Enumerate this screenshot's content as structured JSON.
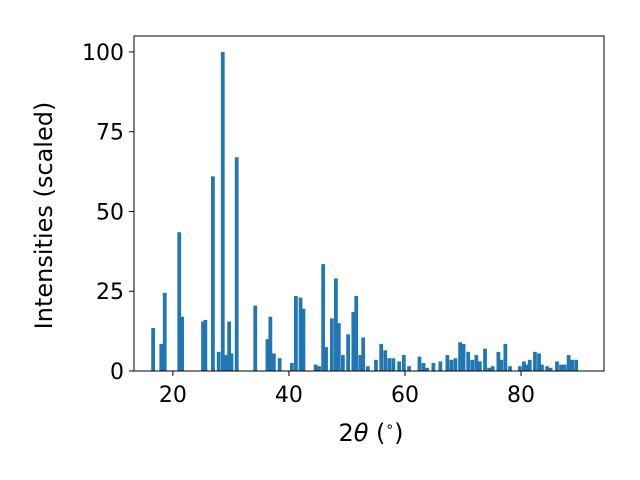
{
  "chart_data": {
    "type": "bar",
    "xlabel_parts": [
      "2",
      "θ",
      " (",
      "∘",
      ")"
    ],
    "ylabel": "Intensities (scaled)",
    "xlim": [
      13.3,
      94.3
    ],
    "ylim": [
      0,
      105
    ],
    "xticks": [
      20,
      40,
      60,
      80
    ],
    "yticks": [
      0,
      25,
      50,
      75,
      100
    ],
    "grid": false,
    "legend": "none",
    "bar_color": "#1f77b4",
    "bar_width_deg": 0.65,
    "x": [
      16.6,
      18.0,
      18.6,
      21.1,
      21.6,
      25.2,
      25.6,
      26.9,
      27.9,
      28.6,
      29.2,
      29.7,
      30.1,
      31.0,
      34.2,
      36.3,
      36.8,
      37.4,
      38.4,
      40.5,
      41.2,
      42.0,
      42.5,
      44.6,
      45.2,
      45.9,
      46.4,
      47.4,
      48.1,
      48.6,
      49.3,
      50.2,
      51.1,
      51.6,
      52.3,
      52.8,
      53.6,
      55.0,
      55.9,
      56.6,
      57.3,
      58.0,
      59.0,
      59.8,
      60.7,
      62.5,
      63.2,
      63.8,
      64.9,
      66.1,
      67.3,
      68.0,
      68.7,
      69.5,
      70.1,
      70.9,
      71.6,
      72.3,
      72.9,
      73.8,
      74.5,
      75.1,
      76.1,
      76.6,
      77.3,
      78.1,
      79.8,
      80.5,
      81.0,
      81.5,
      82.4,
      83.1,
      83.6,
      84.5,
      85.1,
      86.2,
      86.9,
      87.5,
      88.2,
      88.8,
      89.5
    ],
    "values": [
      13.5,
      8.5,
      24.5,
      43.5,
      17,
      15.5,
      16,
      61,
      6,
      100,
      5,
      15.5,
      5.5,
      67,
      20.5,
      10,
      17,
      5.5,
      4,
      2.5,
      23.5,
      23,
      19.5,
      2,
      1.5,
      33.5,
      7.5,
      16.5,
      29,
      15,
      5,
      11.5,
      18.5,
      23.5,
      5,
      10.5,
      1.5,
      3.5,
      8.5,
      6.5,
      4,
      4,
      3,
      5,
      1.5,
      4.5,
      2.5,
      1,
      2.5,
      3,
      5,
      3.5,
      4,
      9,
      8.5,
      6,
      3.5,
      5,
      3,
      7,
      1,
      1.5,
      6,
      3.5,
      8.5,
      1.5,
      1.5,
      3,
      2,
      3.5,
      6,
      5.5,
      2,
      1.5,
      1,
      3,
      2,
      2,
      5,
      3.5,
      3.5
    ]
  }
}
